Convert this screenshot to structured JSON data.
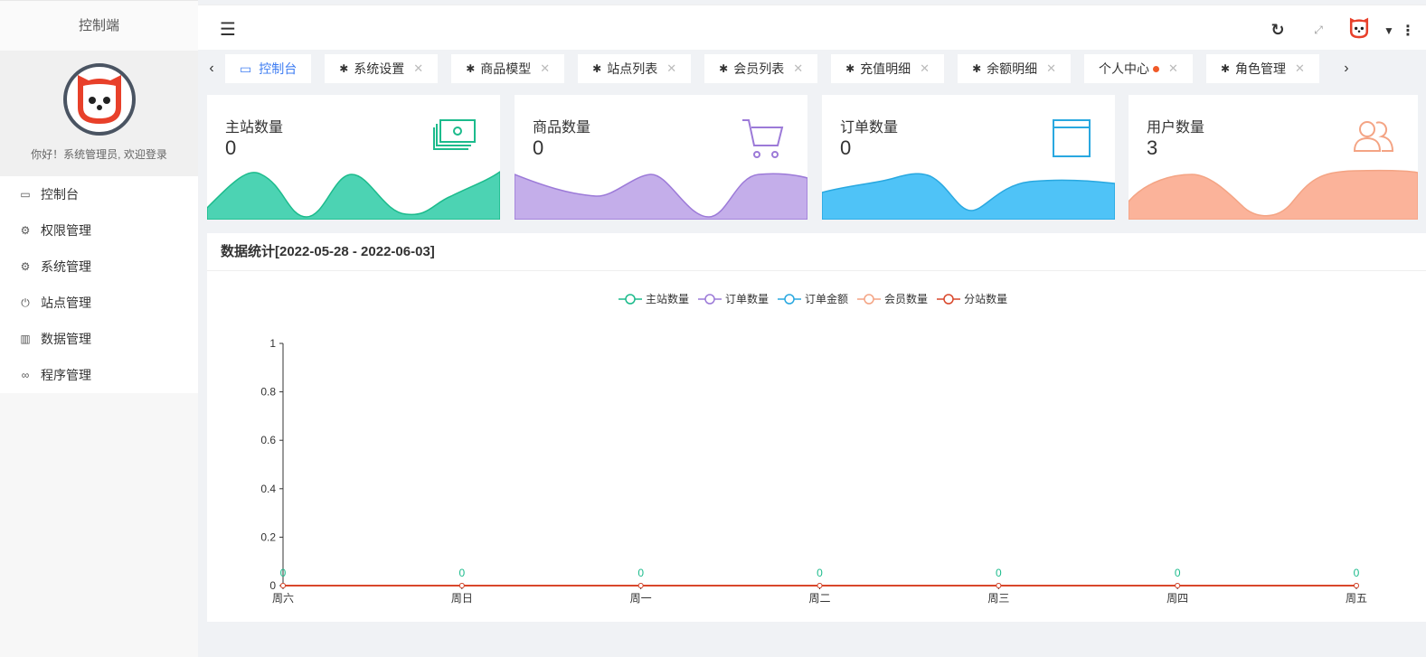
{
  "sidebar": {
    "brand": "控制端",
    "welcome": "你好！系统管理员, 欢迎登录",
    "items": [
      {
        "label": "控制台",
        "icon": "monitor-icon"
      },
      {
        "label": "权限管理",
        "icon": "gear-icon"
      },
      {
        "label": "系统管理",
        "icon": "gear-icon"
      },
      {
        "label": "站点管理",
        "icon": "power-icon"
      },
      {
        "label": "数据管理",
        "icon": "table-icon"
      },
      {
        "label": "程序管理",
        "icon": "infinity-icon"
      }
    ]
  },
  "tabs": [
    {
      "label": "控制台",
      "active": true
    },
    {
      "label": "系统设置"
    },
    {
      "label": "商品模型"
    },
    {
      "label": "站点列表"
    },
    {
      "label": "会员列表"
    },
    {
      "label": "充值明细"
    },
    {
      "label": "余额明细"
    },
    {
      "label": "个人中心"
    },
    {
      "label": "角色管理"
    }
  ],
  "cards": [
    {
      "title": "主站数量",
      "value": "0",
      "color": "#4cd3b3"
    },
    {
      "title": "商品数量",
      "value": "0",
      "color": "#c4aeea"
    },
    {
      "title": "订单数量",
      "value": "0",
      "color": "#4fc3f7"
    },
    {
      "title": "用户数量",
      "value": "3",
      "color": "#fbb39a"
    }
  ],
  "panel": {
    "title": "数据统计[2022-05-28 - 2022-06-03]"
  },
  "chart_data": {
    "type": "line",
    "categories": [
      "周六",
      "周日",
      "周一",
      "周二",
      "周三",
      "周四",
      "周五"
    ],
    "ylim": [
      0,
      1
    ],
    "yticks": [
      "0",
      "0.2",
      "0.4",
      "0.6",
      "0.8",
      "1"
    ],
    "series": [
      {
        "name": "主站数量",
        "values": [
          0,
          0,
          0,
          0,
          0,
          0,
          0
        ],
        "color": "#1cbb8c"
      },
      {
        "name": "订单数量",
        "values": [
          0,
          0,
          0,
          0,
          0,
          0,
          0
        ],
        "color": "#9c7ad8"
      },
      {
        "name": "订单金额",
        "values": [
          0,
          0,
          0,
          0,
          0,
          0,
          0
        ],
        "color": "#29a8e0"
      },
      {
        "name": "会员数量",
        "values": [
          0,
          0,
          0,
          0,
          0,
          0,
          0
        ],
        "color": "#f4a484"
      },
      {
        "name": "分站数量",
        "values": [
          0,
          0,
          0,
          0,
          0,
          0,
          0
        ],
        "color": "#d9472b"
      }
    ],
    "data_labels": true,
    "legend": "top-center",
    "grid": false
  }
}
